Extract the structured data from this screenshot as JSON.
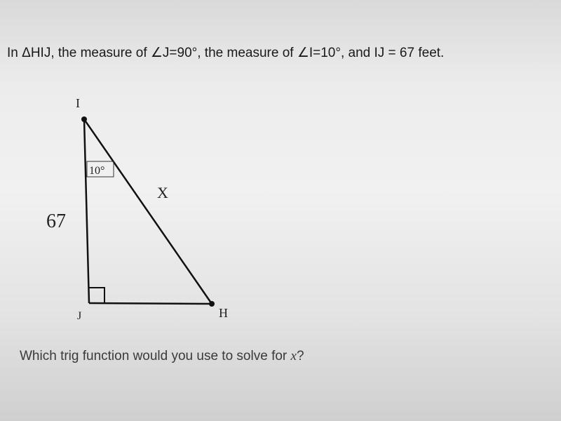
{
  "problem": {
    "statement": "In ΔHIJ, the measure of ∠J=90°, the measure of ∠I=10°, and IJ = 67 feet."
  },
  "diagram": {
    "vertex_i": "I",
    "vertex_j": "J",
    "vertex_h": "H",
    "angle_i": "10°",
    "hypotenuse": "X",
    "side_ij": "67"
  },
  "question": {
    "before": "Which trig function would you use to solve for ",
    "variable": "x",
    "after": "?"
  }
}
